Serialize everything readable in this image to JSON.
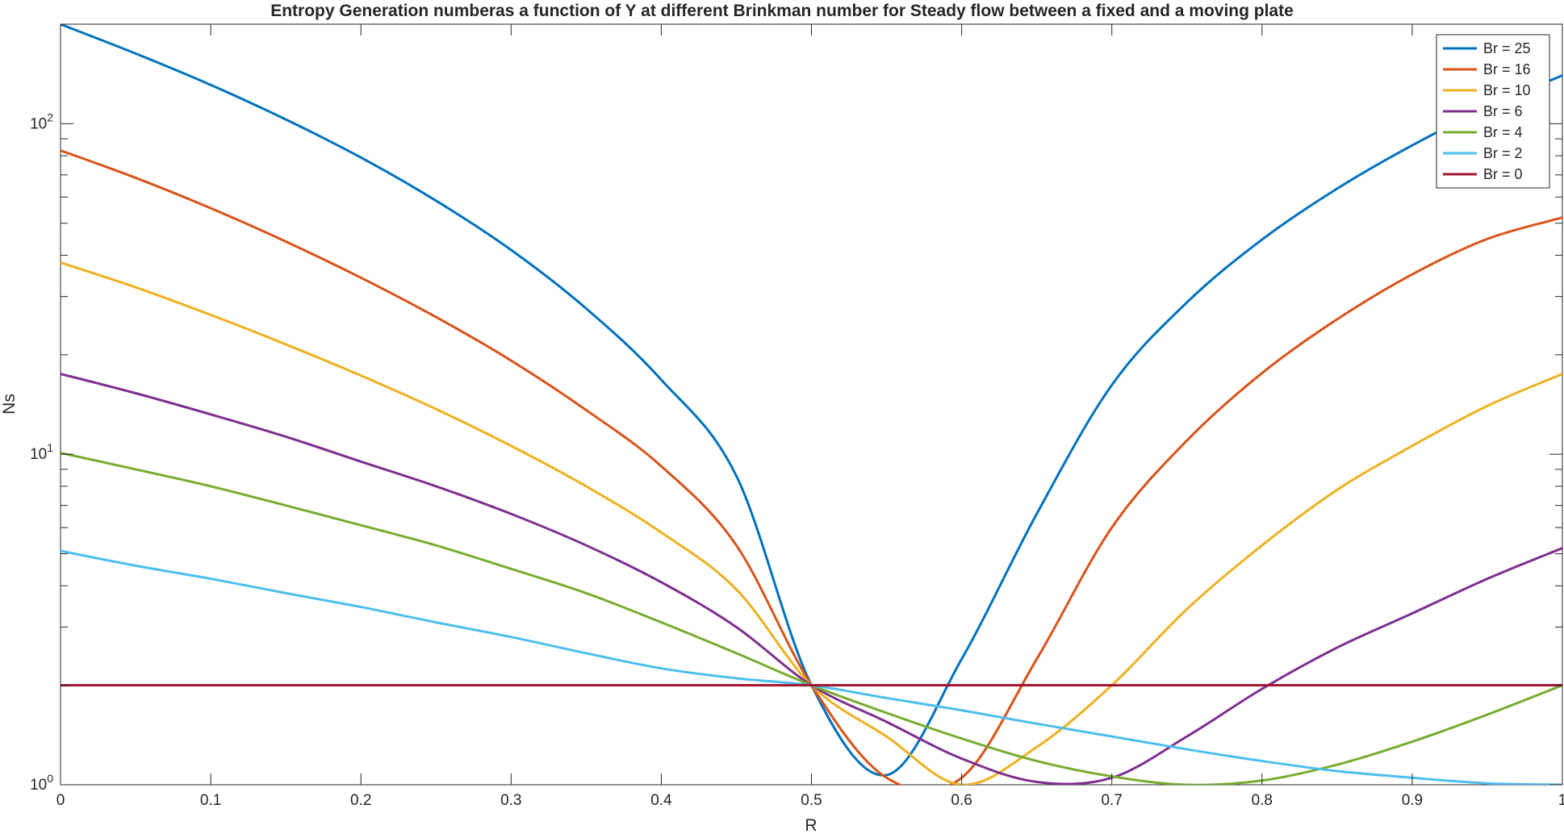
{
  "chart_data": {
    "type": "line",
    "title": "Entropy Generation numberas a function of Y at different Brinkman number for Steady flow between a fixed and a moving plate",
    "xlabel": "R",
    "ylabel": "Ns",
    "xlim": [
      0,
      1
    ],
    "ylim": [
      1,
      200
    ],
    "yscale": "log",
    "grid": false,
    "legend_position": "top-right",
    "x_ticks": [
      "0",
      "0.1",
      "0.2",
      "0.3",
      "0.4",
      "0.5",
      "0.6",
      "0.7",
      "0.8",
      "0.9",
      "1"
    ],
    "y_ticks": [
      {
        "base": "10",
        "exp": "0"
      },
      {
        "base": "10",
        "exp": "1"
      },
      {
        "base": "10",
        "exp": "2"
      }
    ],
    "x": [
      0,
      0.05,
      0.1,
      0.15,
      0.2,
      0.25,
      0.3,
      0.35,
      0.4,
      0.45,
      0.5,
      0.55,
      0.6,
      0.65,
      0.7,
      0.75,
      0.8,
      0.85,
      0.9,
      0.95,
      1
    ],
    "series": [
      {
        "name": "Br = 25",
        "color": "#0072BD",
        "values": [
          200,
          163,
          131,
          103,
          79,
          58.5,
          41.5,
          27.6,
          16.8,
          8.6,
          2,
          1.07,
          2.4,
          6.6,
          16.2,
          28.8,
          44.6,
          63.6,
          86,
          112,
          140
        ]
      },
      {
        "name": "Br = 16",
        "color": "#D95319",
        "values": [
          83,
          68.6,
          55.5,
          44,
          34.2,
          26,
          19.2,
          13.6,
          9.2,
          5.3,
          2,
          1.05,
          1.05,
          2.4,
          6,
          11,
          17.6,
          25.6,
          35,
          44.8,
          52
        ]
      },
      {
        "name": "Br = 10",
        "color": "#EDB120",
        "values": [
          38,
          32,
          26.4,
          21.5,
          17.3,
          13.7,
          10.6,
          8.0,
          5.8,
          3.9,
          2,
          1.4,
          1.0,
          1.3,
          2.0,
          3.4,
          5.3,
          7.8,
          10.6,
          14,
          17.5
        ]
      },
      {
        "name": "Br = 6",
        "color": "#7E2F8E",
        "values": [
          17.5,
          15.3,
          13.2,
          11.3,
          9.5,
          8.0,
          6.6,
          5.3,
          4.1,
          3.0,
          2,
          1.55,
          1.2,
          1.02,
          1.05,
          1.4,
          1.95,
          2.6,
          3.3,
          4.2,
          5.2
        ]
      },
      {
        "name": "Br = 4",
        "color": "#77AC30",
        "values": [
          10.1,
          9.0,
          8.0,
          7.0,
          6.1,
          5.3,
          4.5,
          3.8,
          3.1,
          2.5,
          2,
          1.65,
          1.38,
          1.18,
          1.06,
          1.0,
          1.03,
          1.15,
          1.35,
          1.63,
          2.0
        ]
      },
      {
        "name": "Br = 2",
        "color": "#4DBEEE",
        "values": [
          5.1,
          4.6,
          4.2,
          3.8,
          3.45,
          3.1,
          2.8,
          2.5,
          2.25,
          2.1,
          2,
          1.83,
          1.68,
          1.53,
          1.4,
          1.28,
          1.18,
          1.1,
          1.05,
          1.01,
          1.0
        ]
      },
      {
        "name": "Br = 0",
        "color": "#A2142F",
        "values": [
          2,
          2,
          2,
          2,
          2,
          2,
          2,
          2,
          2,
          2,
          2,
          2,
          2,
          2,
          2,
          2,
          2,
          2,
          2,
          2,
          2
        ]
      }
    ]
  }
}
